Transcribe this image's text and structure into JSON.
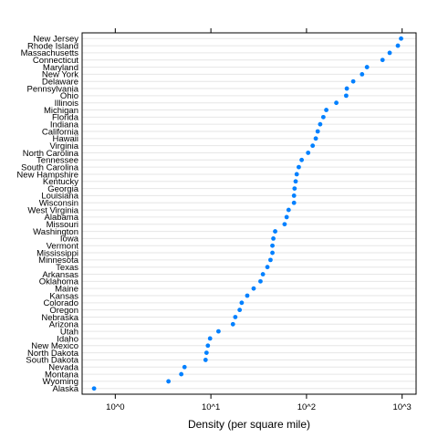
{
  "chart_data": {
    "type": "scatter",
    "xlabel": "Density (per square mile)",
    "x_scale": "log10",
    "xlim": [
      0.45,
      1400
    ],
    "x_ticks": [
      {
        "value": 1,
        "label": "10^0"
      },
      {
        "value": 10,
        "label": "10^1"
      },
      {
        "value": 100,
        "label": "10^2"
      },
      {
        "value": 1000,
        "label": "10^3"
      }
    ],
    "grid": true,
    "point_color": "#0080ff",
    "states": [
      {
        "name": "New Jersey",
        "density": 975
      },
      {
        "name": "Rhode Island",
        "density": 903
      },
      {
        "name": "Massachusetts",
        "density": 741
      },
      {
        "name": "Connecticut",
        "density": 624
      },
      {
        "name": "Maryland",
        "density": 429
      },
      {
        "name": "New York",
        "density": 381
      },
      {
        "name": "Delaware",
        "density": 308
      },
      {
        "name": "Pennsylvania",
        "density": 264
      },
      {
        "name": "Ohio",
        "density": 260
      },
      {
        "name": "Illinois",
        "density": 205
      },
      {
        "name": "Michigan",
        "density": 161
      },
      {
        "name": "Florida",
        "density": 150
      },
      {
        "name": "Indiana",
        "density": 139
      },
      {
        "name": "California",
        "density": 131
      },
      {
        "name": "Hawaii",
        "density": 125
      },
      {
        "name": "Virginia",
        "density": 116
      },
      {
        "name": "North Carolina",
        "density": 104
      },
      {
        "name": "Tennessee",
        "density": 89
      },
      {
        "name": "South Carolina",
        "density": 83
      },
      {
        "name": "New Hampshire",
        "density": 79
      },
      {
        "name": "Kentucky",
        "density": 77
      },
      {
        "name": "Georgia",
        "density": 75
      },
      {
        "name": "Louisiana",
        "density": 74
      },
      {
        "name": "Wisconsin",
        "density": 74
      },
      {
        "name": "West Virginia",
        "density": 65
      },
      {
        "name": "Alabama",
        "density": 62
      },
      {
        "name": "Missouri",
        "density": 59
      },
      {
        "name": "Washington",
        "density": 47
      },
      {
        "name": "Iowa",
        "density": 45
      },
      {
        "name": "Vermont",
        "density": 44
      },
      {
        "name": "Mississippi",
        "density": 44
      },
      {
        "name": "Minnesota",
        "density": 42
      },
      {
        "name": "Texas",
        "density": 39
      },
      {
        "name": "Arkansas",
        "density": 35
      },
      {
        "name": "Oklahoma",
        "density": 33
      },
      {
        "name": "Maine",
        "density": 28
      },
      {
        "name": "Kansas",
        "density": 24
      },
      {
        "name": "Colorado",
        "density": 21
      },
      {
        "name": "Oregon",
        "density": 20
      },
      {
        "name": "Nebraska",
        "density": 18
      },
      {
        "name": "Arizona",
        "density": 17
      },
      {
        "name": "Utah",
        "density": 12
      },
      {
        "name": "Idaho",
        "density": 9.8
      },
      {
        "name": "New Mexico",
        "density": 9.3
      },
      {
        "name": "North Dakota",
        "density": 9.0
      },
      {
        "name": "South Dakota",
        "density": 8.8
      },
      {
        "name": "Nevada",
        "density": 5.3
      },
      {
        "name": "Montana",
        "density": 4.9
      },
      {
        "name": "Wyoming",
        "density": 3.6
      },
      {
        "name": "Alaska",
        "density": 0.6
      }
    ]
  }
}
